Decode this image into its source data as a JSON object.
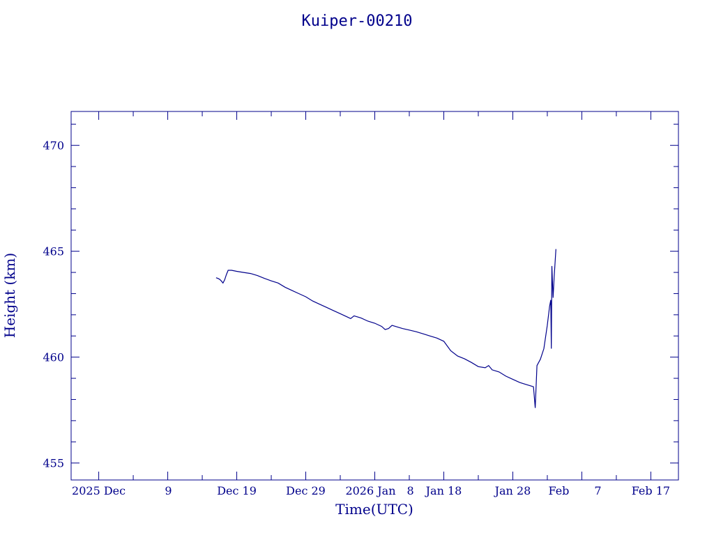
{
  "chart_data": {
    "type": "line",
    "title": "Kuiper-00210",
    "xlabel": "Time(UTC)",
    "ylabel": "Height (km)",
    "x_scale": "time",
    "xlim": [
      "2025-11-25",
      "2026-02-21"
    ],
    "ylim": [
      454.2,
      471.6
    ],
    "y_ticks": [
      455,
      460,
      465,
      470
    ],
    "y_tick_labels": [
      "455",
      "460",
      "465",
      "470"
    ],
    "x_ticks": [
      "2025-11-29",
      "2025-12-09",
      "2025-12-19",
      "2025-12-29",
      "2026-01-08",
      "2026-01-18",
      "2026-01-28",
      "2026-02-07",
      "2026-02-17"
    ],
    "x_tick_labels": [
      "2025 Dec",
      "9",
      "Dec 19",
      "Dec 29",
      "2026 Jan",
      "8",
      "Jan 18",
      "Jan 28",
      "Feb",
      "7",
      "Feb 17"
    ],
    "grid": false,
    "legend": "none",
    "color": "#00008b",
    "series": [
      {
        "points": [
          [
            "2025-12-16T00:00",
            463.75
          ],
          [
            "2025-12-16T06:00",
            463.72
          ],
          [
            "2025-12-16T12:00",
            463.68
          ],
          [
            "2025-12-16T18:00",
            463.6
          ],
          [
            "2025-12-17T00:00",
            463.5
          ],
          [
            "2025-12-17T06:00",
            463.65
          ],
          [
            "2025-12-17T12:00",
            463.9
          ],
          [
            "2025-12-17T18:00",
            464.1
          ],
          [
            "2025-12-18T06:00",
            464.1
          ],
          [
            "2025-12-19T00:00",
            464.05
          ],
          [
            "2025-12-20T00:00",
            464.0
          ],
          [
            "2025-12-21T00:00",
            463.95
          ],
          [
            "2025-12-22T00:00",
            463.85
          ],
          [
            "2025-12-23T00:00",
            463.72
          ],
          [
            "2025-12-24T00:00",
            463.6
          ],
          [
            "2025-12-25T00:00",
            463.5
          ],
          [
            "2025-12-26T00:00",
            463.3
          ],
          [
            "2025-12-27T00:00",
            463.15
          ],
          [
            "2025-12-28T00:00",
            463.0
          ],
          [
            "2025-12-29T00:00",
            462.85
          ],
          [
            "2025-12-30T00:00",
            462.65
          ],
          [
            "2025-12-31T00:00",
            462.5
          ],
          [
            "2026-01-01T00:00",
            462.35
          ],
          [
            "2026-01-02T00:00",
            462.2
          ],
          [
            "2026-01-03T00:00",
            462.05
          ],
          [
            "2026-01-04T00:00",
            461.9
          ],
          [
            "2026-01-04T12:00",
            461.82
          ],
          [
            "2026-01-05T00:00",
            461.95
          ],
          [
            "2026-01-06T00:00",
            461.85
          ],
          [
            "2026-01-07T00:00",
            461.7
          ],
          [
            "2026-01-08T00:00",
            461.6
          ],
          [
            "2026-01-09T00:00",
            461.45
          ],
          [
            "2026-01-09T12:00",
            461.3
          ],
          [
            "2026-01-10T00:00",
            461.35
          ],
          [
            "2026-01-10T12:00",
            461.5
          ],
          [
            "2026-01-11T00:00",
            461.45
          ],
          [
            "2026-01-12T00:00",
            461.35
          ],
          [
            "2026-01-13T00:00",
            461.28
          ],
          [
            "2026-01-14T00:00",
            461.2
          ],
          [
            "2026-01-15T00:00",
            461.1
          ],
          [
            "2026-01-16T00:00",
            461.0
          ],
          [
            "2026-01-17T00:00",
            460.9
          ],
          [
            "2026-01-18T00:00",
            460.75
          ],
          [
            "2026-01-19T00:00",
            460.3
          ],
          [
            "2026-01-20T00:00",
            460.05
          ],
          [
            "2026-01-21T00:00",
            459.92
          ],
          [
            "2026-01-22T00:00",
            459.75
          ],
          [
            "2026-01-23T00:00",
            459.55
          ],
          [
            "2026-01-24T00:00",
            459.5
          ],
          [
            "2026-01-24T12:00",
            459.6
          ],
          [
            "2026-01-25T00:00",
            459.4
          ],
          [
            "2026-01-26T00:00",
            459.3
          ],
          [
            "2026-01-27T00:00",
            459.1
          ],
          [
            "2026-01-28T00:00",
            458.95
          ],
          [
            "2026-01-29T00:00",
            458.8
          ],
          [
            "2026-01-30T00:00",
            458.7
          ],
          [
            "2026-01-31T00:00",
            458.6
          ],
          [
            "2026-01-31T06:00",
            457.6
          ],
          [
            "2026-01-31T12:00",
            459.6
          ],
          [
            "2026-02-01T00:00",
            459.9
          ],
          [
            "2026-02-01T12:00",
            460.4
          ],
          [
            "2026-02-02T00:00",
            461.5
          ],
          [
            "2026-02-02T08:00",
            462.4
          ],
          [
            "2026-02-02T12:00",
            462.7
          ],
          [
            "2026-02-02T14:00",
            460.4
          ],
          [
            "2026-02-02T16:00",
            464.3
          ],
          [
            "2026-02-02T20:00",
            462.8
          ],
          [
            "2026-02-03T00:00",
            463.8
          ],
          [
            "2026-02-03T06:00",
            465.1
          ]
        ]
      }
    ]
  }
}
